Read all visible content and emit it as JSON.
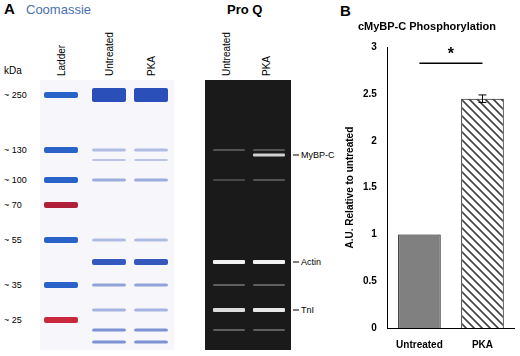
{
  "chart_data": {
    "type": "bar",
    "panel": "B",
    "title": "cMyBP-C Phosphorylation",
    "y_label": "A.U. Relative to untreated",
    "categories": [
      "Untreated",
      "PKA"
    ],
    "values": [
      1,
      2.45
    ],
    "errors": [
      0,
      0.04
    ],
    "colors": [
      "#808080",
      "#404040"
    ],
    "ylim": [
      0,
      3
    ],
    "yticks": [
      0,
      0.5,
      1,
      1.5,
      2,
      2.5,
      3
    ],
    "grid": false,
    "annotations": [
      {
        "text": "*"
      }
    ]
  },
  "panel_a": {
    "label": "A",
    "title": "Coomassie",
    "ladder_title": "kDa",
    "lanes": [
      "Ladder",
      "Untreated",
      "PKA"
    ],
    "ladder_marks": [
      "~ 250",
      "~ 130",
      "~ 100",
      "~ 70",
      "~ 55",
      "~ 35",
      "~ 25"
    ],
    "proq_title": "Pro Q",
    "proq_lanes": [
      "Untreated",
      "PKA"
    ],
    "bands": [
      "MyBP-C",
      "Actin",
      "TnI"
    ]
  }
}
